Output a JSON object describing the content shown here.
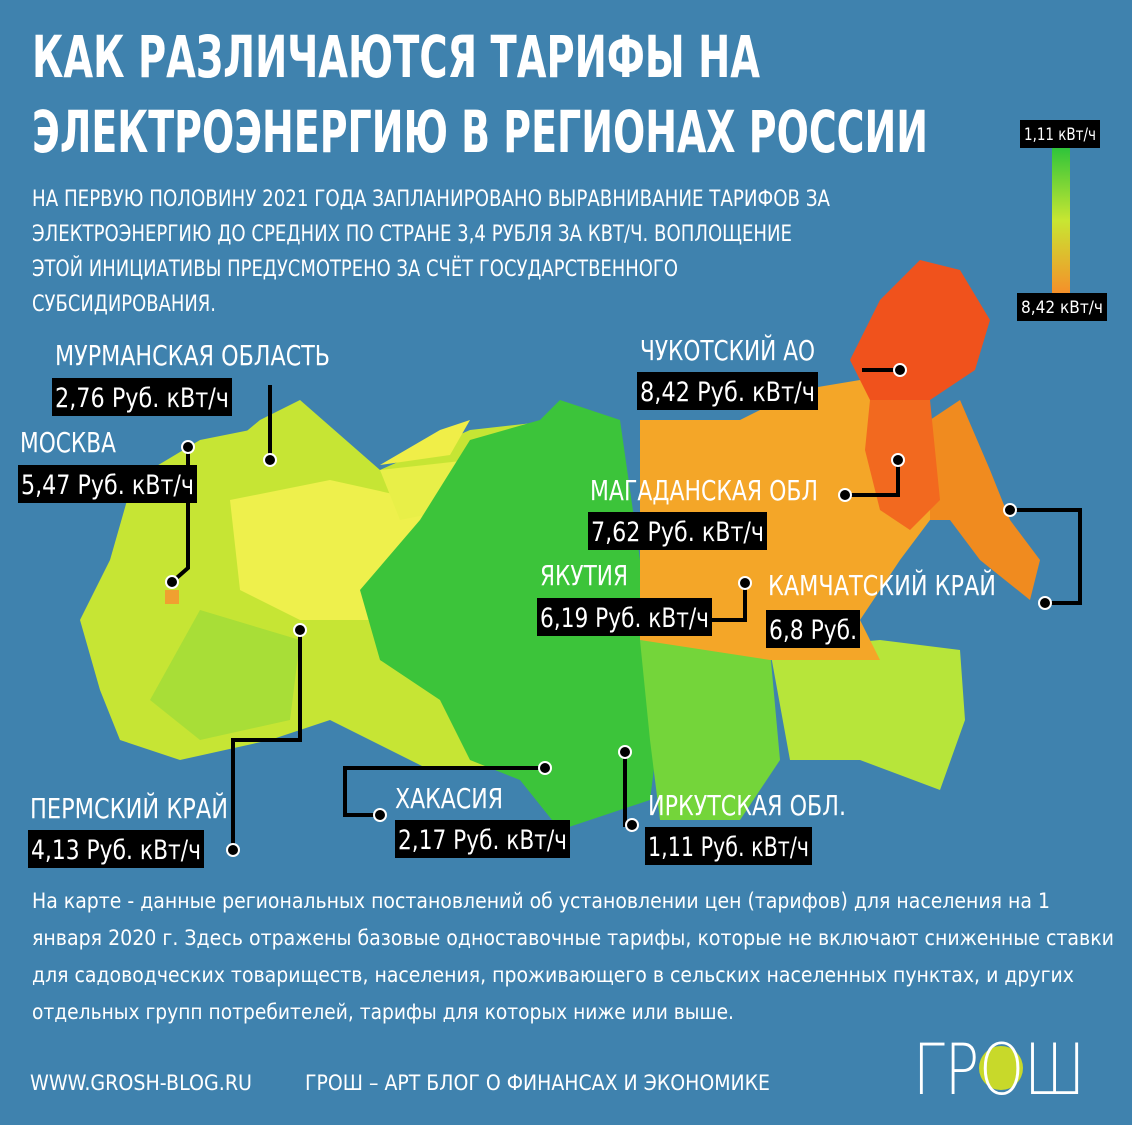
{
  "header": {
    "title_lines": [
      "КАК РАЗЛИЧАЮТСЯ ТАРИФЫ НА",
      "ЭЛЕКТРОЭНЕРГИЮ В РЕГИОНАХ РОССИИ"
    ],
    "subtitle_lines": [
      "НА ПЕРВУЮ ПОЛОВИНУ 2021 ГОДА ЗАПЛАНИРОВАНО ВЫРАВНИВАНИЕ ТАРИФОВ ЗА",
      "ЭЛЕКТРОЭНЕРГИЮ ДО СРЕДНИХ ПО СТРАНЕ 3,4 РУБЛЯ ЗА КВТ/Ч. ВОПЛОЩЕНИЕ",
      "ЭТОЙ ИНИЦИАТИВЫ ПРЕДУСМОТРЕНО ЗА СЧЁТ ГОСУДАРСТВЕННОГО",
      "СУБСИДИРОВАНИЯ."
    ]
  },
  "legend": {
    "top_label": "1,11 кВт/ч",
    "bottom_label": "8,42 кВт/ч"
  },
  "regions": [
    {
      "name": "МУРМАНСКАЯ ОБЛАСТЬ",
      "tariff": "2,76 Руб. кВт/ч"
    },
    {
      "name": "МОСКВА",
      "tariff": "5,47 Руб. кВт/ч"
    },
    {
      "name": "ЧУКОТСКИЙ АО",
      "tariff": "8,42 Руб. кВт/ч"
    },
    {
      "name": "МАГАДАНСКАЯ ОБЛ",
      "tariff": "7,62 Руб. кВт/ч"
    },
    {
      "name": "ЯКУТИЯ",
      "tariff": "6,19 Руб. кВт/ч"
    },
    {
      "name": "КАМЧАТСКИЙ КРАЙ",
      "tariff": "6,8 Руб."
    },
    {
      "name": "ПЕРМСКИЙ КРАЙ",
      "tariff": "4,13 Руб. кВт/ч"
    },
    {
      "name": "ХАКАСИЯ",
      "tariff": "2,17 Руб. кВт/ч"
    },
    {
      "name": "ИРКУТСКАЯ ОБЛ.",
      "tariff": "1,11 Руб. кВт/ч"
    }
  ],
  "footnote_lines": [
    "На карте - данные региональных постановлений об установлении цен (тарифов) для населения на 1",
    "января 2020 г. Здесь отражены базовые одноставочные тарифы, которые не включают сниженные ставки",
    "для садоводческих товариществ, населения, проживающего в сельских населенных пунктах, и других",
    "отдельных групп потребителей, тарифы для которых ниже или выше."
  ],
  "footer": {
    "site": "WWW.GROSH-BLOG.RU",
    "tagline": "ГРОШ – АРТ БЛОГ О ФИНАНСАХ И ЭКОНОМИКЕ",
    "logo": "ГРОШ"
  }
}
